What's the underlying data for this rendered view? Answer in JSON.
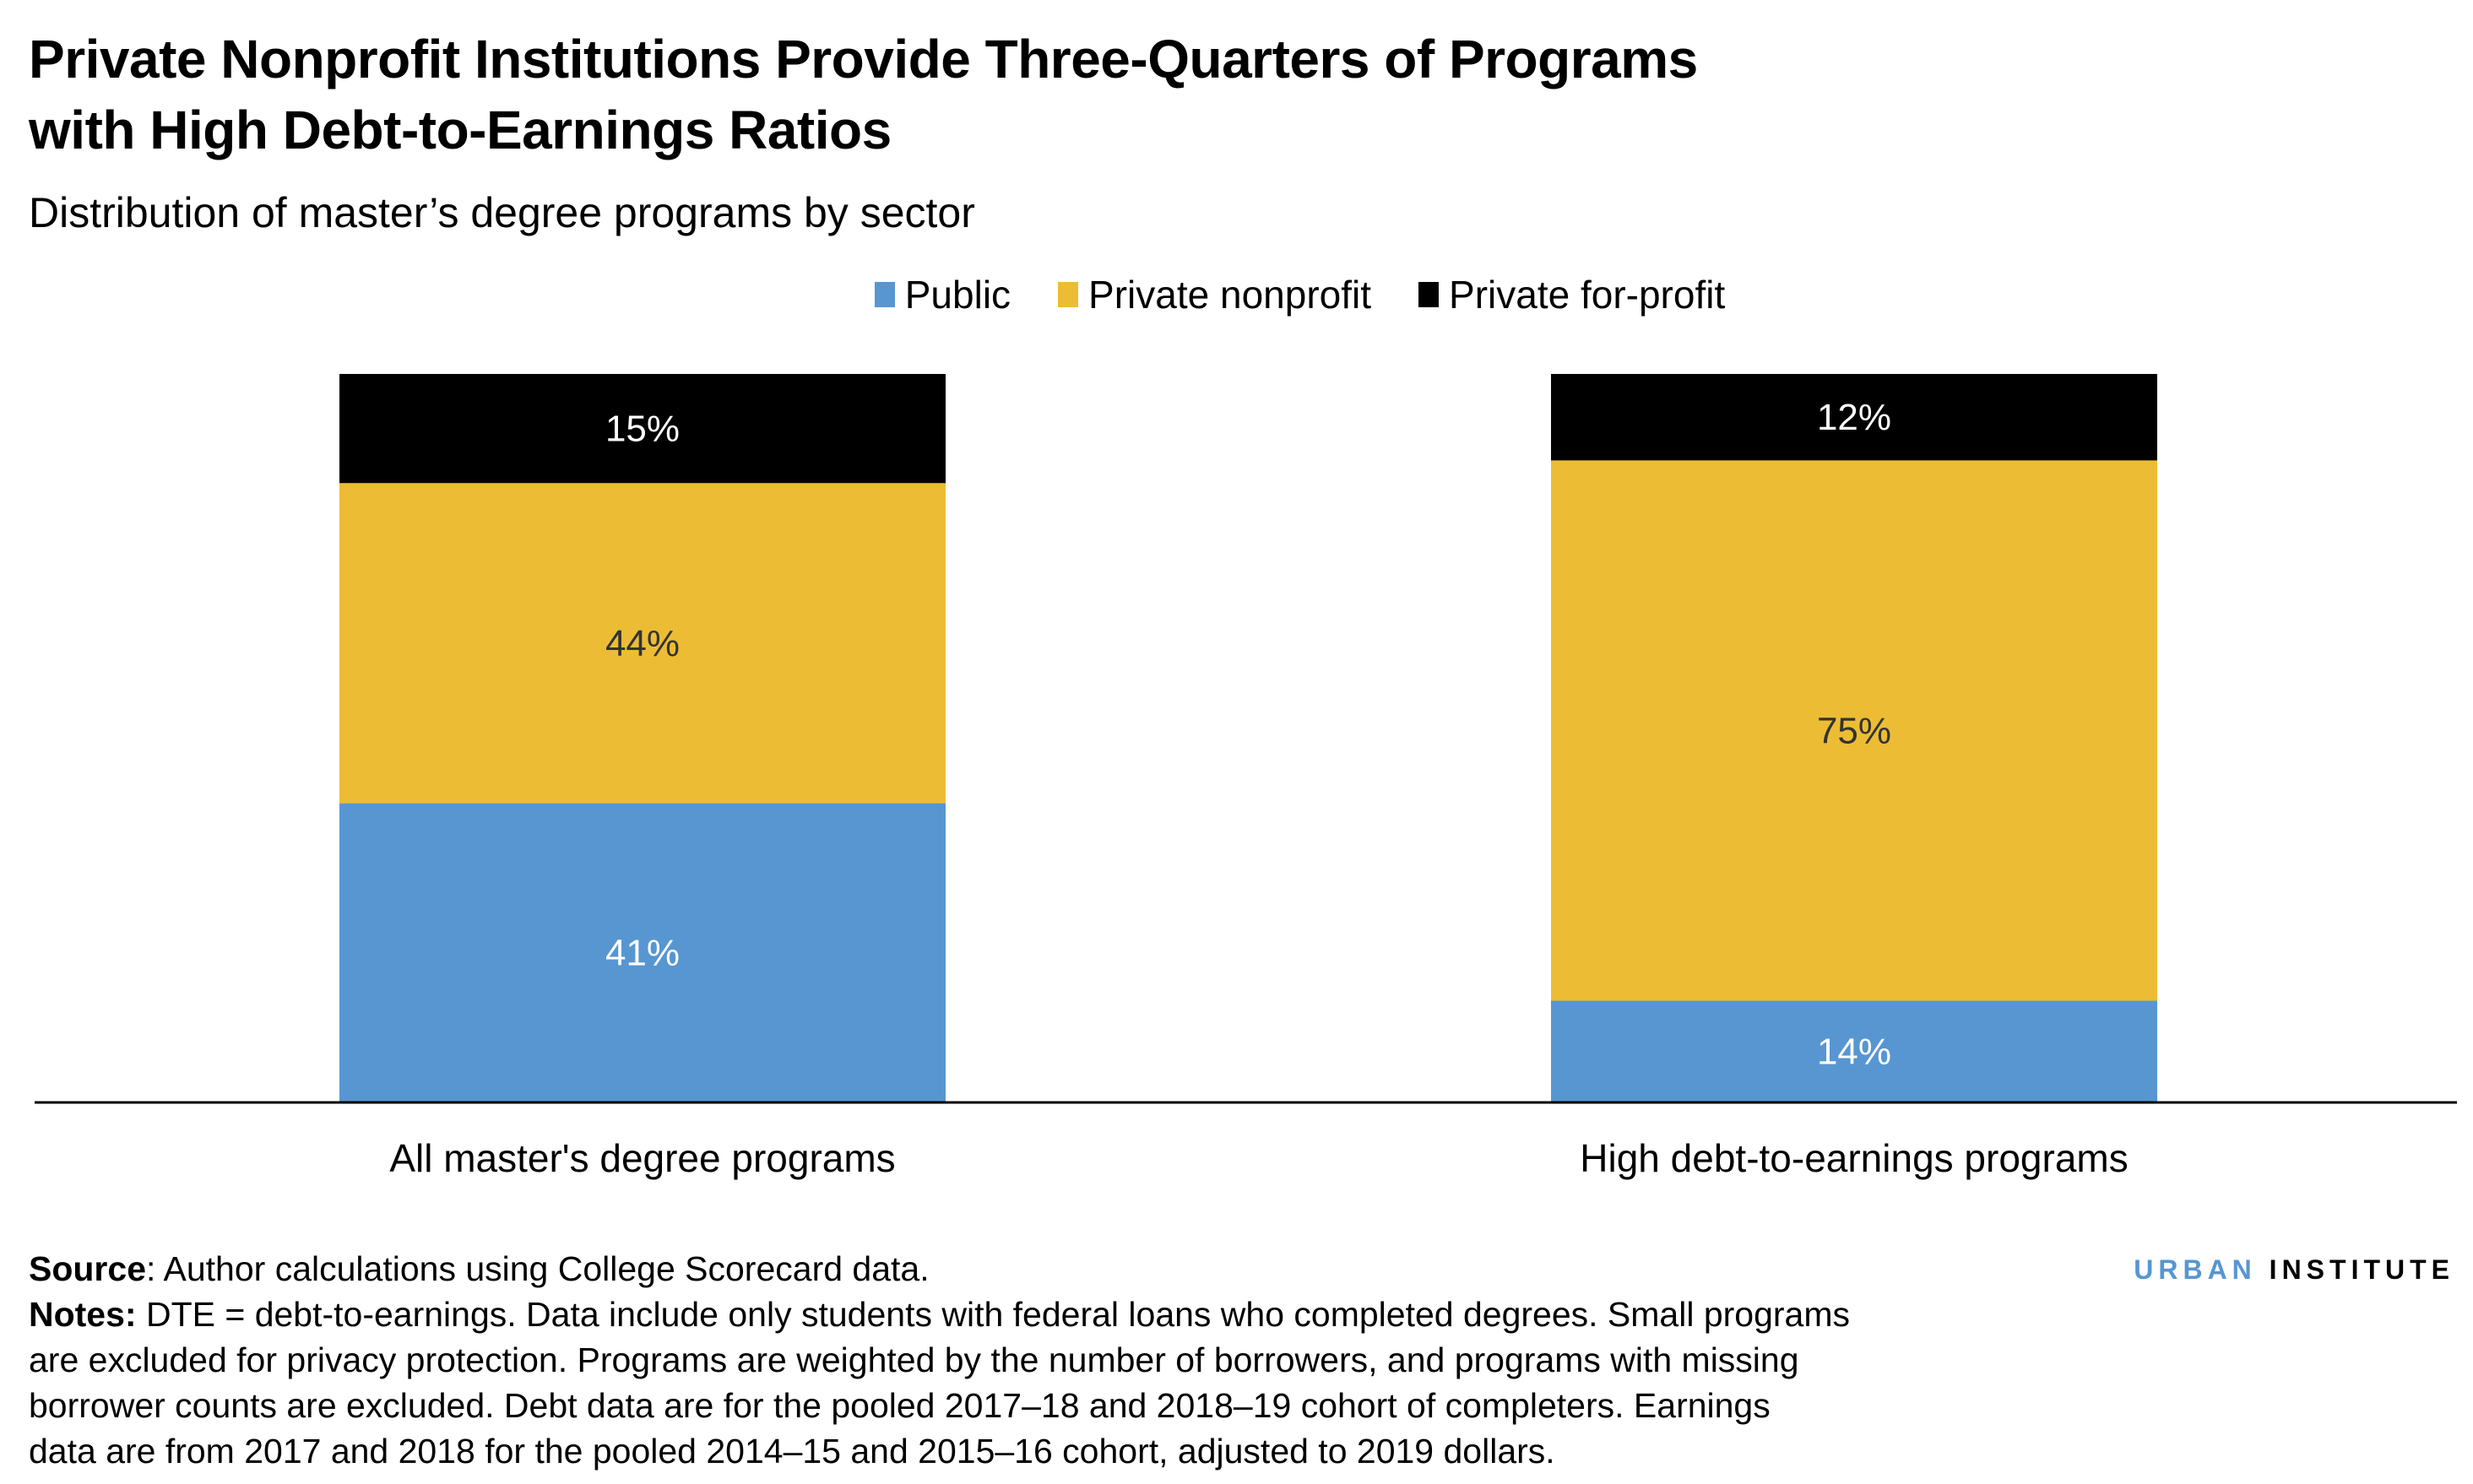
{
  "title_lines": [
    "Private Nonprofit Institutions Provide Three-Quarters of Programs",
    "with High Debt-to-Earnings Ratios"
  ],
  "subtitle": "Distribution of master’s degree programs by sector",
  "colors": {
    "public": "#5796d1",
    "private_nonprofit": "#ecbd34",
    "private_for_profit": "#000000",
    "logo_blue": "#5796d1"
  },
  "chart_data": {
    "type": "bar",
    "stacked": true,
    "percent_stacked": true,
    "categories": [
      "All master's degree programs",
      "High debt-to-earnings programs"
    ],
    "series": [
      {
        "name": "Public",
        "values": [
          41,
          14
        ],
        "color": "#5796d1",
        "label_color": "#ffffff"
      },
      {
        "name": "Private nonprofit",
        "values": [
          44,
          75
        ],
        "color": "#ecbd34",
        "label_color": "#333333"
      },
      {
        "name": "Private for-profit",
        "values": [
          15,
          12
        ],
        "color": "#000000",
        "label_color": "#ffffff"
      }
    ],
    "data_labels": [
      [
        "41%",
        "14%"
      ],
      [
        "44%",
        "75%"
      ],
      [
        "15%",
        "12%"
      ]
    ],
    "legend_position": "top",
    "grid": false,
    "y_axis_shown": false
  },
  "footer": {
    "source_label": "Source",
    "source_text": ": Author calculations using College Scorecard data.",
    "notes_label": "Notes:",
    "notes_lines": [
      " DTE = debt-to-earnings. Data include only students with federal loans who completed degrees. Small programs",
      "are excluded for privacy protection. Programs are weighted by the number of borrowers, and programs with missing",
      "borrower counts are excluded. Debt data are for the pooled 2017–18 and 2018–19 cohort of completers. Earnings",
      "data are from 2017 and 2018 for the pooled 2014–15 and 2015–16 cohort, adjusted to 2019 dollars."
    ]
  },
  "logo": {
    "part1": "URBAN",
    "part2": "INSTITUTE"
  }
}
